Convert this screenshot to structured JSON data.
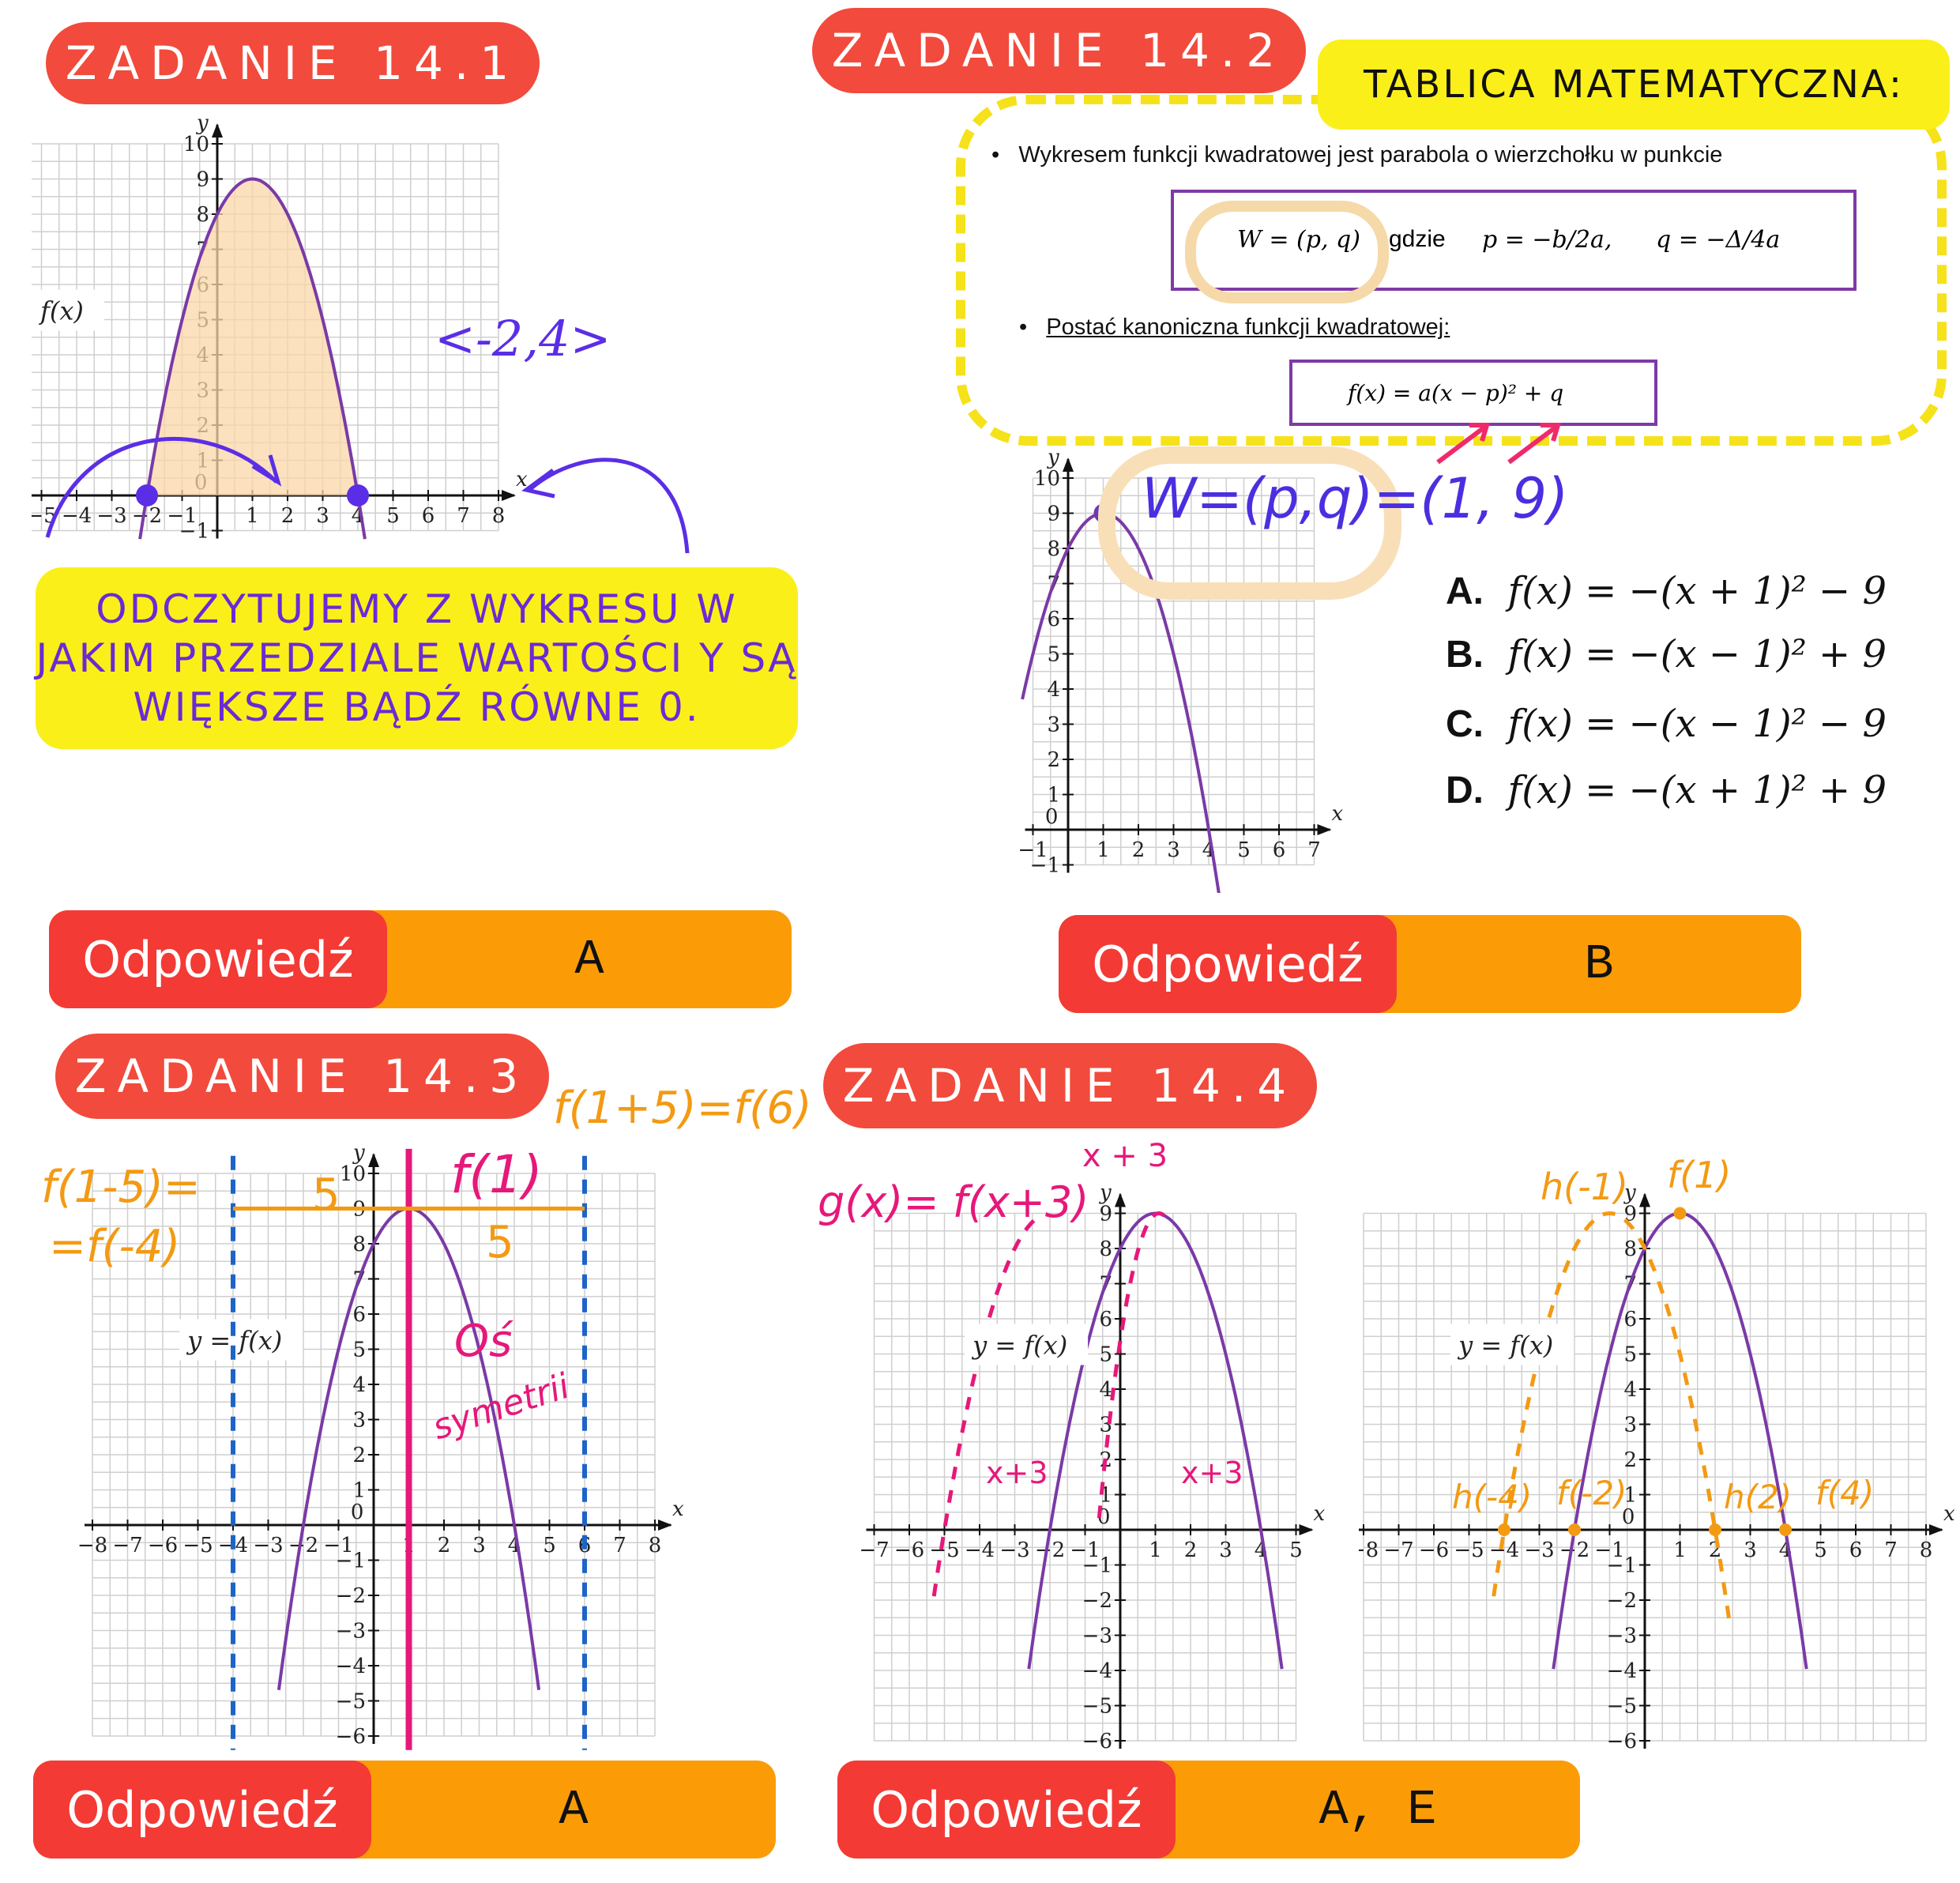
{
  "tasks": {
    "t1": {
      "title": "ZADANIE 14.1",
      "func": "y = f(x)",
      "interval": "<-2,4>",
      "note": "ODCZYTUJEMY Z WYKRESU W JAKIM PRZEDZIALE WARTOŚCI Y SĄ WIĘKSZE BĄDŹ RÓWNE 0.",
      "answer_label": "Odpowiedź",
      "answer": "A"
    },
    "t2": {
      "title": "ZADANIE 14.2",
      "table_title": "TABLICA MATEMATYCZNA:",
      "bullet1": "Wykresem funkcji kwadratowej jest parabola o wierzchołku w punkcie",
      "vertex_formula": "W = (p, q)",
      "gdzie": "gdzie",
      "p_formula": "p = −b/2a,",
      "q_formula": "q = −Δ/4a",
      "bullet2": "Postać kanoniczna funkcji kwadratowej:",
      "canonical": "f(x) = a(x − p)² + q",
      "vertex_note": "W=(p,q)=(1, 9)",
      "options": [
        {
          "letter": "A.",
          "formula": "f(x) = −(x + 1)² − 9"
        },
        {
          "letter": "B.",
          "formula": "f(x) = −(x − 1)² + 9"
        },
        {
          "letter": "C.",
          "formula": "f(x) = −(x − 1)² − 9"
        },
        {
          "letter": "D.",
          "formula": "f(x) = −(x + 1)² + 9"
        }
      ],
      "answer_label": "Odpowiedź",
      "answer": "B"
    },
    "t3": {
      "title": "ZADANIE 14.3",
      "func": "y = f(x)",
      "left_note1": "f(1-5)=",
      "left_note2": "=f(-4)",
      "right_note": "f(1+5)=f(6)",
      "center_note": "f(1)",
      "dist": "5",
      "axis_note1": "Oś",
      "axis_note2": "symetrii",
      "answer_label": "Odpowiedź",
      "answer": "A"
    },
    "t4": {
      "title": "ZADANIE 14.4",
      "func": "y = f(x)",
      "g_note": "g(x)= f(x+3)",
      "shift": "x + 3",
      "shift_small": "x+3",
      "h_notes": [
        "h(-1)",
        "f(1)",
        "h(-4)",
        "f(-2)",
        "h(2)",
        "f(4)"
      ],
      "answer_label": "Odpowiedź",
      "answer": "A, E"
    }
  },
  "chart_data": [
    {
      "type": "line",
      "name": "14.1",
      "series": [
        {
          "formula": "-(x-1)^2+9",
          "x": [
            -2,
            1,
            4
          ],
          "y": [
            0,
            9,
            0
          ]
        }
      ],
      "xlim": [
        -7,
        7
      ],
      "ylim": [
        0,
        10
      ]
    },
    {
      "type": "line",
      "name": "14.2",
      "series": [
        {
          "formula": "-(x-1)^2+9",
          "x": [
            1,
            4
          ],
          "y": [
            9,
            0
          ]
        }
      ],
      "xlim": [
        -1,
        7
      ],
      "ylim": [
        0,
        10
      ]
    },
    {
      "type": "line",
      "name": "14.3",
      "series": [
        {
          "formula": "-(x-1)^2+9"
        }
      ],
      "xlim": [
        -7,
        7
      ],
      "ylim": [
        -6,
        10
      ],
      "vlines": [
        -4,
        1,
        6
      ]
    },
    {
      "type": "line",
      "name": "14.4a",
      "series": [
        {
          "formula": "-(x-1)^2+9"
        },
        {
          "formula": "-(x+2)^2+9",
          "style": "dashed"
        }
      ],
      "xlim": [
        -7,
        5
      ],
      "ylim": [
        -6,
        10
      ]
    },
    {
      "type": "line",
      "name": "14.4b",
      "series": [
        {
          "formula": "-(x-1)^2+9"
        },
        {
          "formula": "-(x+1)^2+9",
          "style": "dashed"
        }
      ],
      "xlim": [
        -7,
        7
      ],
      "ylim": [
        -6,
        10
      ]
    }
  ],
  "colors": {
    "red": "#f24a3c",
    "orange": "#fb9c07",
    "yellow": "#fbef1a",
    "purple": "#7a3aa6",
    "magenta": "#e6187a",
    "blue": "#1e64c8"
  }
}
